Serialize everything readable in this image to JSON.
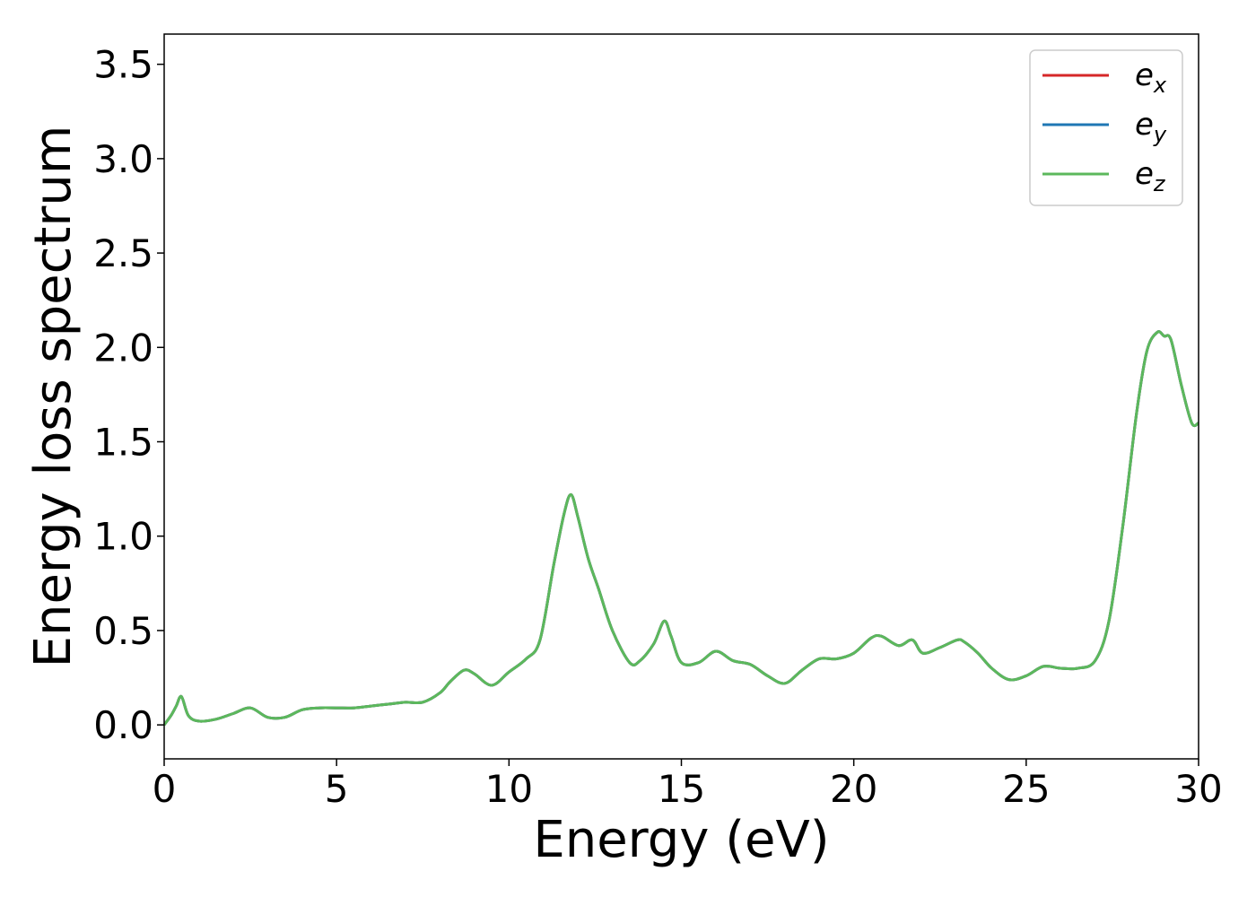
{
  "chart_data": {
    "type": "line",
    "xlabel": "Energy (eV)",
    "ylabel": "Energy loss spectrum",
    "xlim": [
      0,
      30
    ],
    "ylim": [
      -0.18,
      3.66
    ],
    "xticks": [
      0,
      5,
      10,
      15,
      20,
      25,
      30
    ],
    "yticks": [
      0.0,
      0.5,
      1.0,
      1.5,
      2.0,
      2.5,
      3.0,
      3.5
    ],
    "xtick_labels": [
      "0",
      "5",
      "10",
      "15",
      "20",
      "25",
      "30"
    ],
    "ytick_labels": [
      "0.0",
      "0.5",
      "1.0",
      "1.5",
      "2.0",
      "2.5",
      "3.0",
      "3.5"
    ],
    "grid": false,
    "legend_position": "top-right",
    "x": [
      0,
      0.2,
      0.35,
      0.5,
      0.7,
      1.0,
      1.5,
      2.0,
      2.5,
      3.0,
      3.5,
      4.0,
      4.5,
      5.0,
      5.5,
      6.0,
      6.5,
      7.0,
      7.5,
      8.0,
      8.3,
      8.7,
      9.0,
      9.5,
      10.0,
      10.5,
      10.9,
      11.3,
      11.6,
      11.8,
      12.0,
      12.3,
      12.6,
      13.0,
      13.5,
      13.8,
      14.2,
      14.5,
      14.7,
      15.0,
      15.5,
      16.0,
      16.5,
      17.0,
      17.5,
      18.0,
      18.5,
      19.0,
      19.5,
      20.0,
      20.5,
      20.8,
      21.3,
      21.7,
      22.0,
      22.5,
      23.0,
      23.2,
      23.6,
      24.0,
      24.5,
      25.0,
      25.5,
      26.0,
      26.5,
      27.0,
      27.4,
      27.8,
      28.2,
      28.5,
      28.8,
      29.0,
      29.2,
      29.5,
      29.8,
      30.0
    ],
    "series": [
      {
        "name": "e_x",
        "color": "#d62728",
        "y": [
          0.0,
          0.05,
          0.1,
          0.15,
          0.05,
          0.02,
          0.03,
          0.06,
          0.09,
          0.04,
          0.04,
          0.08,
          0.09,
          0.09,
          0.09,
          0.1,
          0.11,
          0.12,
          0.12,
          0.17,
          0.23,
          0.29,
          0.27,
          0.21,
          0.28,
          0.35,
          0.45,
          0.85,
          1.12,
          1.22,
          1.1,
          0.88,
          0.72,
          0.5,
          0.33,
          0.34,
          0.43,
          0.55,
          0.47,
          0.33,
          0.33,
          0.39,
          0.34,
          0.32,
          0.26,
          0.22,
          0.29,
          0.35,
          0.35,
          0.38,
          0.46,
          0.47,
          0.42,
          0.45,
          0.38,
          0.41,
          0.45,
          0.44,
          0.38,
          0.3,
          0.24,
          0.26,
          0.31,
          0.3,
          0.3,
          0.34,
          0.55,
          1.05,
          1.65,
          1.98,
          2.08,
          2.06,
          2.04,
          1.8,
          1.6,
          1.6
        ]
      },
      {
        "name": "e_y",
        "color": "#1f77b4",
        "y": [
          0.0,
          0.05,
          0.1,
          0.15,
          0.05,
          0.02,
          0.03,
          0.06,
          0.09,
          0.04,
          0.04,
          0.08,
          0.09,
          0.09,
          0.09,
          0.1,
          0.11,
          0.12,
          0.12,
          0.17,
          0.23,
          0.29,
          0.27,
          0.21,
          0.28,
          0.35,
          0.45,
          0.85,
          1.12,
          1.22,
          1.1,
          0.88,
          0.72,
          0.5,
          0.33,
          0.34,
          0.43,
          0.55,
          0.47,
          0.33,
          0.33,
          0.39,
          0.34,
          0.32,
          0.26,
          0.22,
          0.29,
          0.35,
          0.35,
          0.38,
          0.46,
          0.47,
          0.42,
          0.45,
          0.38,
          0.41,
          0.45,
          0.44,
          0.38,
          0.3,
          0.24,
          0.26,
          0.31,
          0.3,
          0.3,
          0.34,
          0.55,
          1.05,
          1.65,
          1.98,
          2.08,
          2.06,
          2.04,
          1.8,
          1.6,
          1.6
        ]
      },
      {
        "name": "e_z",
        "color": "#5cb85c",
        "y": [
          0.0,
          0.05,
          0.1,
          0.15,
          0.05,
          0.02,
          0.03,
          0.06,
          0.09,
          0.04,
          0.04,
          0.08,
          0.09,
          0.09,
          0.09,
          0.1,
          0.11,
          0.12,
          0.12,
          0.17,
          0.23,
          0.29,
          0.27,
          0.21,
          0.28,
          0.35,
          0.45,
          0.85,
          1.12,
          1.22,
          1.1,
          0.88,
          0.72,
          0.5,
          0.33,
          0.34,
          0.43,
          0.55,
          0.47,
          0.33,
          0.33,
          0.39,
          0.34,
          0.32,
          0.26,
          0.22,
          0.29,
          0.35,
          0.35,
          0.38,
          0.46,
          0.47,
          0.42,
          0.45,
          0.38,
          0.41,
          0.45,
          0.44,
          0.38,
          0.3,
          0.24,
          0.26,
          0.31,
          0.3,
          0.3,
          0.34,
          0.55,
          1.05,
          1.65,
          1.98,
          2.08,
          2.06,
          2.04,
          1.8,
          1.6,
          1.6
        ]
      }
    ],
    "legend": [
      {
        "base": "e",
        "sub": "x",
        "color": "#d62728"
      },
      {
        "base": "e",
        "sub": "y",
        "color": "#1f77b4"
      },
      {
        "base": "e",
        "sub": "z",
        "color": "#5cb85c"
      }
    ]
  }
}
